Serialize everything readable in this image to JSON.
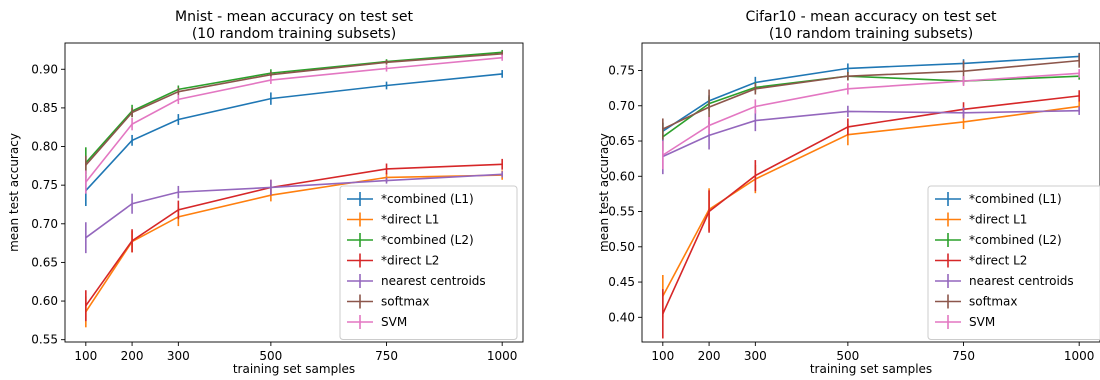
{
  "chart_data": [
    {
      "type": "line",
      "title": [
        "Mnist - mean accuracy on test set",
        "(10 random training subsets)"
      ],
      "xlabel": "training set samples",
      "ylabel": "mean test accuracy",
      "x": [
        100,
        200,
        300,
        500,
        750,
        1000
      ],
      "xticks": [
        "100",
        "200",
        "300",
        "500",
        "750",
        "1000"
      ],
      "yticks": [
        "0.55",
        "0.60",
        "0.65",
        "0.70",
        "0.75",
        "0.80",
        "0.85",
        "0.90"
      ],
      "ylim": [
        0.547,
        0.934
      ],
      "grid": false,
      "legend_position": "lower-right",
      "series": [
        {
          "name": "*combined (L1)",
          "color": "#1f77b4",
          "values": [
            0.743,
            0.808,
            0.835,
            0.862,
            0.879,
            0.894
          ],
          "errors": [
            0.02,
            0.007,
            0.007,
            0.008,
            0.005,
            0.005
          ]
        },
        {
          "name": "*direct L1",
          "color": "#ff7f0e",
          "values": [
            0.586,
            0.677,
            0.709,
            0.737,
            0.76,
            0.763
          ],
          "errors": [
            0.02,
            0.014,
            0.012,
            0.008,
            0.006,
            0.006
          ]
        },
        {
          "name": "*combined (L2)",
          "color": "#2ca02c",
          "values": [
            0.779,
            0.846,
            0.874,
            0.895,
            0.91,
            0.922
          ],
          "errors": [
            0.02,
            0.008,
            0.005,
            0.005,
            0.003,
            0.003
          ]
        },
        {
          "name": "*direct L2",
          "color": "#d62728",
          "values": [
            0.594,
            0.678,
            0.718,
            0.747,
            0.771,
            0.777
          ],
          "errors": [
            0.02,
            0.015,
            0.012,
            0.01,
            0.007,
            0.007
          ]
        },
        {
          "name": "nearest centroids",
          "color": "#9467bd",
          "values": [
            0.682,
            0.726,
            0.741,
            0.747,
            0.756,
            0.764
          ],
          "errors": [
            0.02,
            0.013,
            0.008,
            0.01,
            0.004,
            0.004
          ]
        },
        {
          "name": "softmax",
          "color": "#8c564b",
          "values": [
            0.776,
            0.844,
            0.871,
            0.893,
            0.909,
            0.92
          ],
          "errors": [
            0.012,
            0.006,
            0.005,
            0.004,
            0.003,
            0.003
          ]
        },
        {
          "name": "SVM",
          "color": "#e377c2",
          "values": [
            0.754,
            0.829,
            0.861,
            0.886,
            0.901,
            0.915
          ],
          "errors": [
            0.015,
            0.008,
            0.006,
            0.005,
            0.004,
            0.004
          ]
        }
      ]
    },
    {
      "type": "line",
      "title": [
        "Cifar10 - mean accuracy on test set",
        "(10 random training subsets)"
      ],
      "xlabel": "training set samples",
      "ylabel": "mean test accuracy",
      "x": [
        100,
        200,
        300,
        500,
        750,
        1000
      ],
      "xticks": [
        "100",
        "200",
        "300",
        "500",
        "750",
        "1000"
      ],
      "yticks": [
        "0.40",
        "0.45",
        "0.50",
        "0.55",
        "0.60",
        "0.65",
        "0.70",
        "0.75"
      ],
      "ylim": [
        0.365,
        0.789
      ],
      "grid": false,
      "legend_position": "lower-right",
      "series": [
        {
          "name": "*combined (L1)",
          "color": "#1f77b4",
          "values": [
            0.664,
            0.707,
            0.733,
            0.753,
            0.76,
            0.77
          ],
          "errors": [
            0.012,
            0.008,
            0.008,
            0.007,
            0.006,
            0.005
          ]
        },
        {
          "name": "*direct L1",
          "color": "#ff7f0e",
          "values": [
            0.43,
            0.553,
            0.596,
            0.659,
            0.677,
            0.699
          ],
          "errors": [
            0.03,
            0.03,
            0.02,
            0.015,
            0.01,
            0.008
          ]
        },
        {
          "name": "*combined (L2)",
          "color": "#2ca02c",
          "values": [
            0.656,
            0.703,
            0.726,
            0.742,
            0.735,
            0.742
          ],
          "errors": [
            0.02,
            0.01,
            0.007,
            0.006,
            0.005,
            0.005
          ]
        },
        {
          "name": "*direct L2",
          "color": "#d62728",
          "values": [
            0.405,
            0.55,
            0.601,
            0.67,
            0.695,
            0.714
          ],
          "errors": [
            0.035,
            0.03,
            0.022,
            0.012,
            0.01,
            0.008
          ]
        },
        {
          "name": "nearest centroids",
          "color": "#9467bd",
          "values": [
            0.628,
            0.658,
            0.679,
            0.692,
            0.69,
            0.693
          ],
          "errors": [
            0.025,
            0.02,
            0.015,
            0.008,
            0.008,
            0.006
          ]
        },
        {
          "name": "softmax",
          "color": "#8c564b",
          "values": [
            0.667,
            0.698,
            0.724,
            0.742,
            0.749,
            0.764
          ],
          "errors": [
            0.015,
            0.025,
            0.008,
            0.006,
            0.015,
            0.01
          ]
        },
        {
          "name": "SVM",
          "color": "#e377c2",
          "values": [
            0.63,
            0.672,
            0.699,
            0.724,
            0.735,
            0.746
          ],
          "errors": [
            0.02,
            0.012,
            0.01,
            0.008,
            0.007,
            0.006
          ]
        }
      ]
    }
  ]
}
